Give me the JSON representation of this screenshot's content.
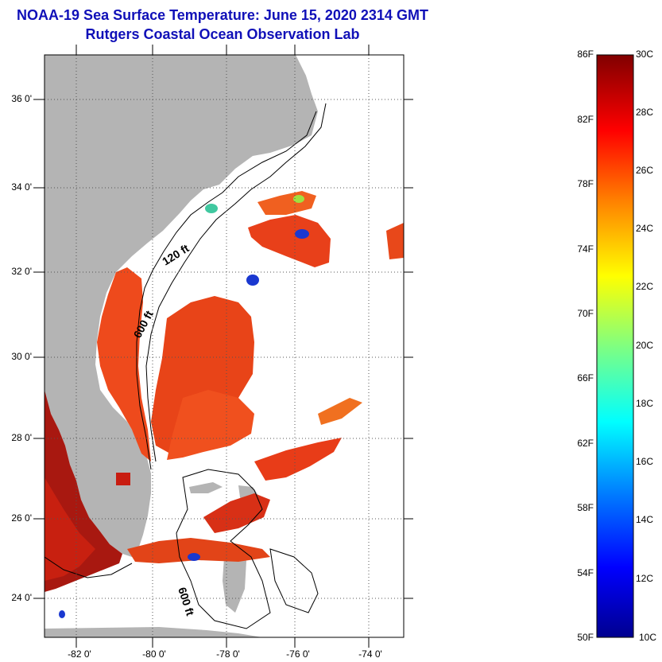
{
  "title_line1": "NOAA-19 Sea Surface Temperature:  June 15, 2020 2314 GMT",
  "title_line2": "Rutgers Coastal Ocean Observation Lab",
  "map": {
    "lat_labels": [
      "36 0'",
      "34 0'",
      "32 0'",
      "30 0'",
      "28 0'",
      "26 0'",
      "24 0'"
    ],
    "lon_labels": [
      "-82 0'",
      "-80 0'",
      "-78 0'",
      "-76 0'",
      "-74 0'"
    ],
    "isobath_labels": [
      "120 ft",
      "600 ft",
      "600 ft"
    ],
    "colors": {
      "land": "#b4b4b4",
      "ocean_no_data": "#ffffff",
      "warm": "#e8401a",
      "hot": "#b01a10",
      "cool": "#1a3ad0"
    }
  },
  "colorbar": {
    "f_labels": [
      "86F",
      "82F",
      "78F",
      "74F",
      "70F",
      "66F",
      "62F",
      "58F",
      "54F",
      "50F"
    ],
    "c_labels": [
      "30C",
      "28C",
      "26C",
      "24C",
      "22C",
      "20C",
      "18C",
      "16C",
      "14C",
      "12C",
      "10C"
    ],
    "gradient": [
      "#00008f",
      "#0000ff",
      "#0080ff",
      "#00ffff",
      "#80ff80",
      "#ffff00",
      "#ff8000",
      "#ff0000",
      "#800000"
    ]
  }
}
